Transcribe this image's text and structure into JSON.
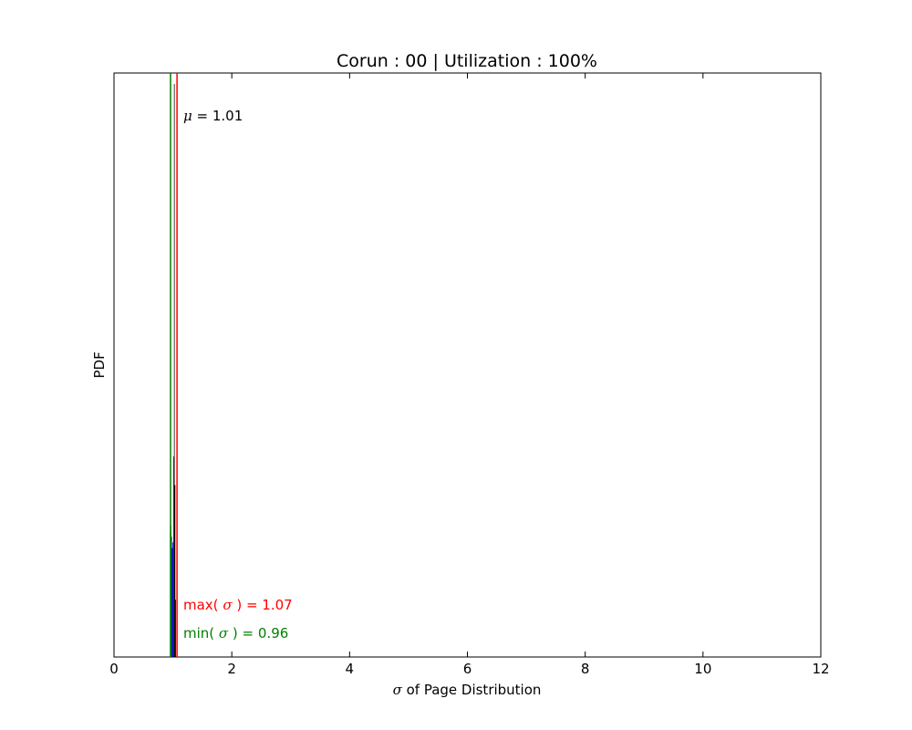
{
  "chart_data": {
    "type": "bar",
    "title": "Corun : 00 | Utilization : 100%",
    "xlabel_symbol": "σ",
    "xlabel_text": " of Page Distribution",
    "ylabel": "PDF",
    "xlim": [
      0,
      12
    ],
    "ylim": [
      0,
      1
    ],
    "x_ticks": [
      "0",
      "2",
      "4",
      "6",
      "8",
      "10",
      "12"
    ],
    "x_tick_values": [
      0,
      2,
      4,
      6,
      8,
      10,
      12
    ],
    "y_ticks_visible": false,
    "grid": false,
    "histogram": {
      "bin_width": 0.0115,
      "bins": [
        {
          "x": 0.955,
          "value": 0.22
        },
        {
          "x": 0.967,
          "value": 0.23
        },
        {
          "x": 0.978,
          "value": 0.21
        },
        {
          "x": 0.99,
          "value": 0.19
        },
        {
          "x": 1.001,
          "value": 0.2
        },
        {
          "x": 1.013,
          "value": 0.35
        },
        {
          "x": 1.024,
          "value": 1.0
        },
        {
          "x": 1.036,
          "value": 0.3
        },
        {
          "x": 1.047,
          "value": 0.1
        }
      ],
      "colors": [
        "#008000",
        "#008000",
        "#0000bf",
        "#0000bf",
        "#0000bf",
        "#000000",
        "#000000",
        "#000000",
        "#000000"
      ]
    },
    "vlines": [
      {
        "name": "min",
        "x": 0.96,
        "color": "#008000"
      },
      {
        "name": "max",
        "x": 1.07,
        "color": "#ff0000"
      }
    ],
    "annotations": {
      "mu": {
        "symbol": "μ",
        "text": " = 1.01",
        "color": "#000000"
      },
      "max": {
        "prefix": "max( ",
        "symbol": "σ",
        "suffix": " ) = 1.07",
        "color": "#ff0000"
      },
      "min": {
        "prefix": "min( ",
        "symbol": "σ",
        "suffix": " ) = 0.96",
        "color": "#008000"
      }
    }
  }
}
